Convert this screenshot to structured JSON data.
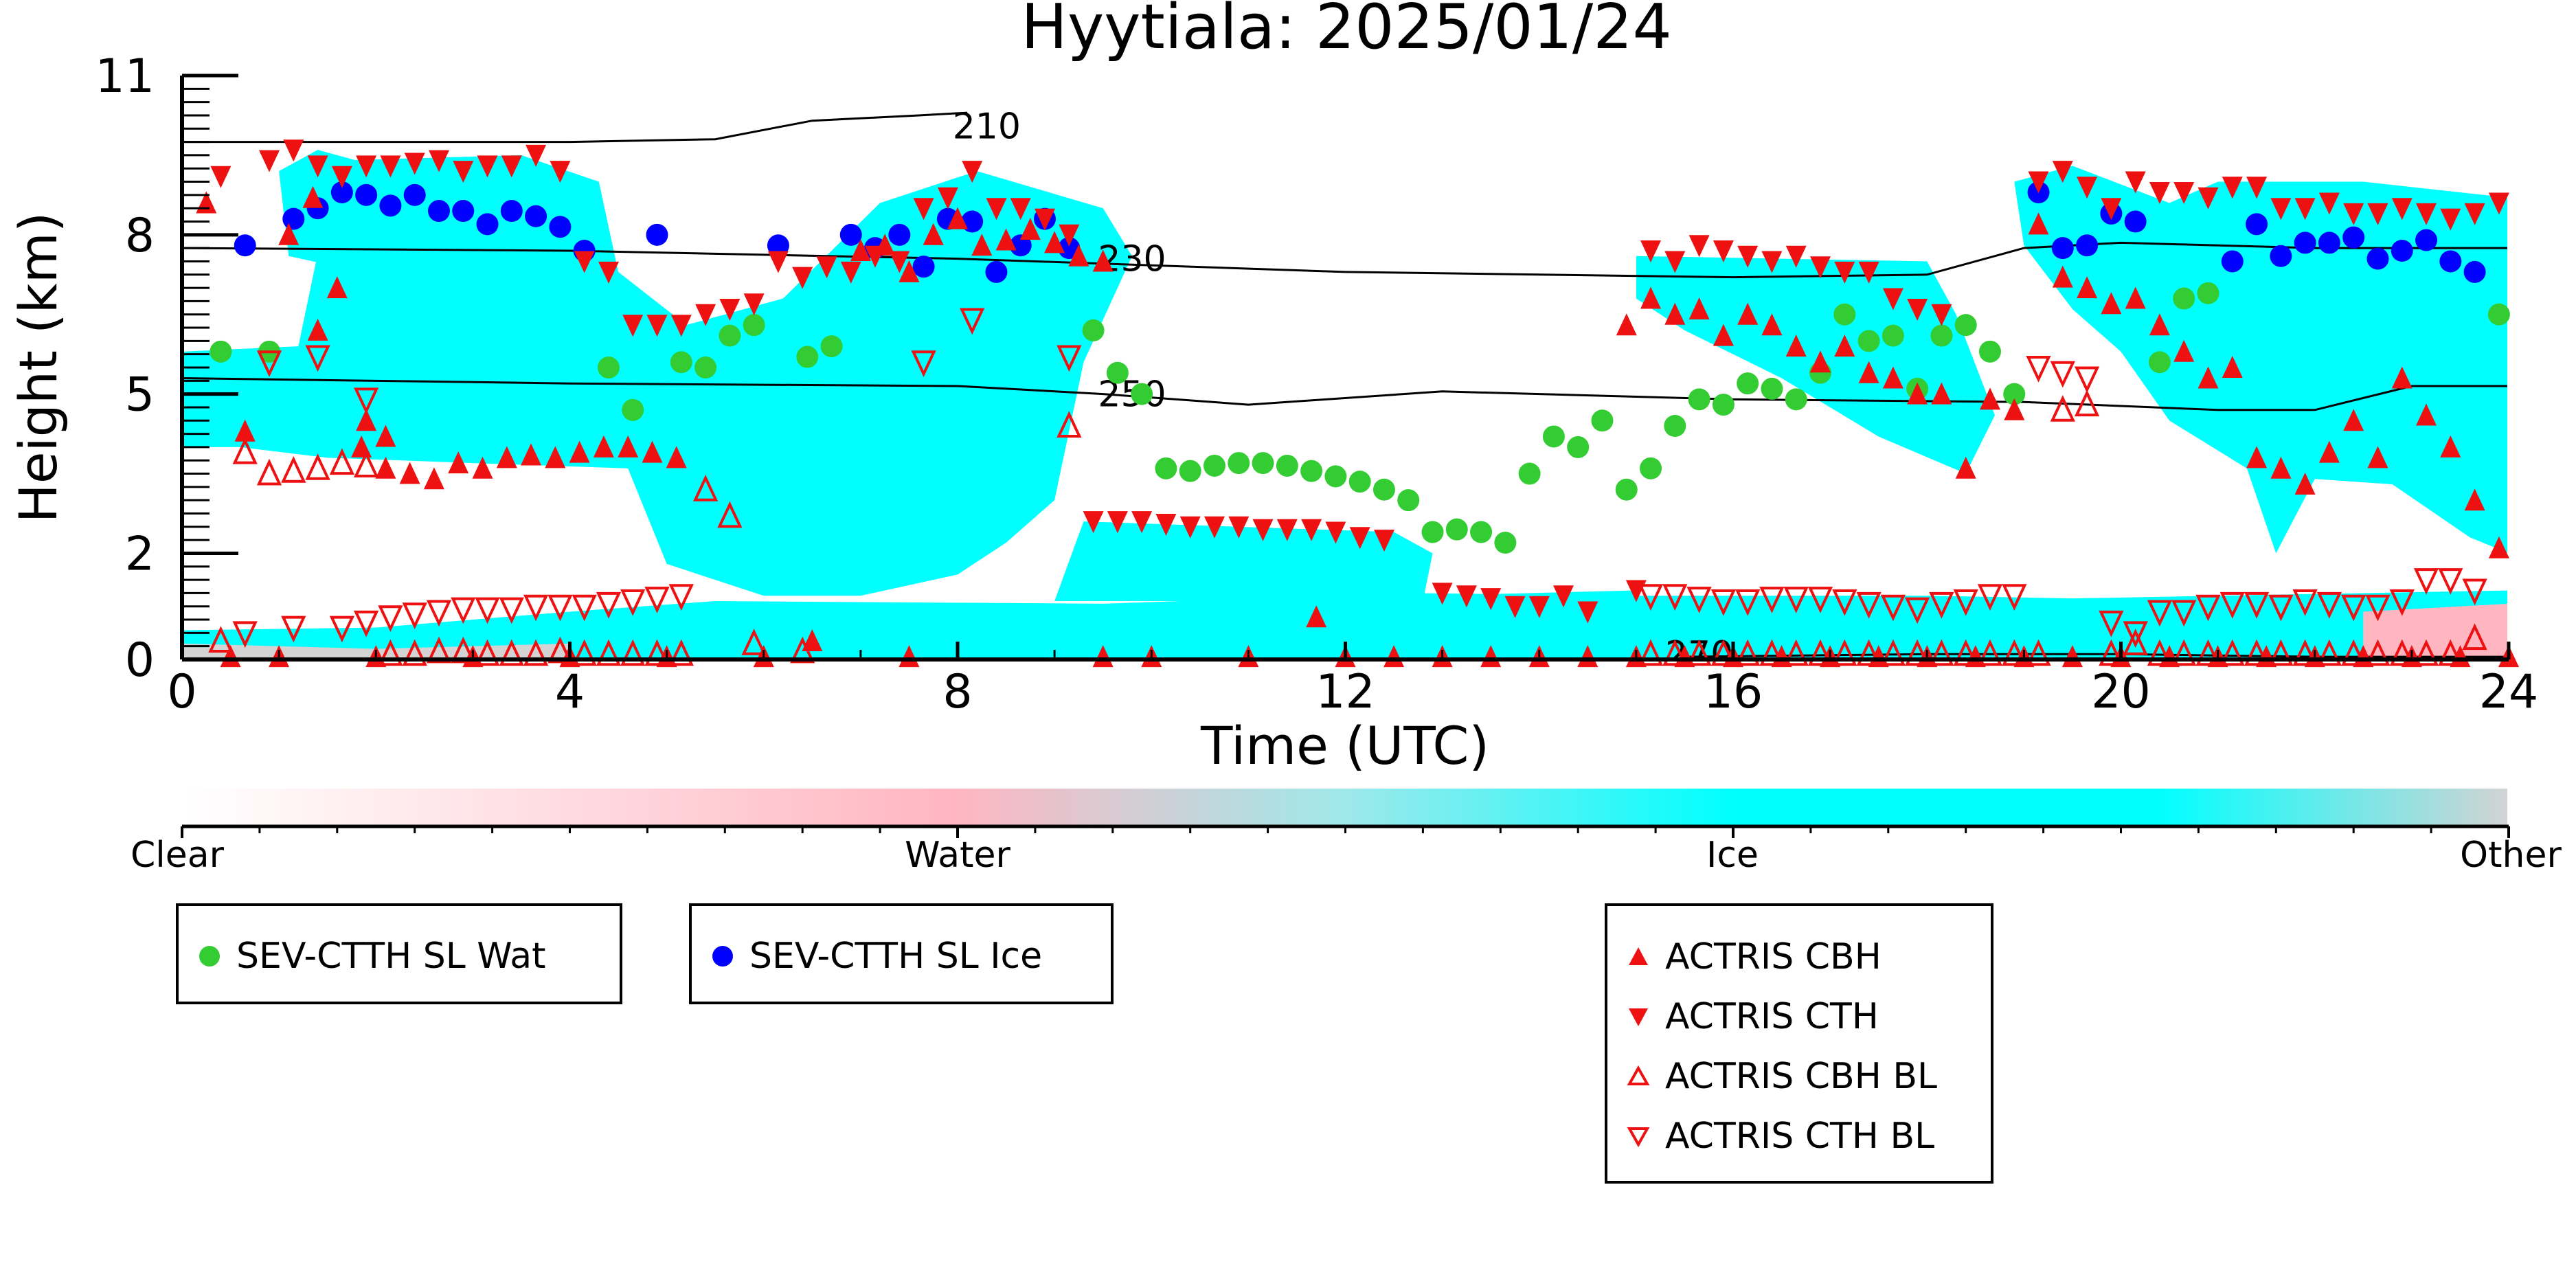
{
  "chart_data": {
    "type": "scatter",
    "title": "Hyytiala: 2025/01/24",
    "xlabel": "Time (UTC)",
    "ylabel": "Height (km)",
    "xlim": [
      0,
      24
    ],
    "ylim": [
      0,
      11
    ],
    "x_ticks": [
      0,
      4,
      8,
      12,
      16,
      20,
      24
    ],
    "y_ticks": [
      0,
      2,
      5,
      8,
      11
    ],
    "y_tick_labels": [
      "0",
      "2",
      "5",
      "8",
      "11"
    ],
    "background_field": {
      "description_colorbar": [
        "Clear",
        "Water",
        "Ice",
        "Other"
      ],
      "colors": {
        "clear": "#ffffff",
        "water": "#ffb6c1",
        "ice": "#00ffff",
        "other": "#d3d3d3"
      }
    },
    "contours": [
      {
        "label": "210",
        "x": [
          0,
          2,
          4,
          5.5,
          6.5,
          7.6,
          8.1
        ],
        "y": [
          9.75,
          9.75,
          9.75,
          9.8,
          10.15,
          10.25,
          10.3
        ]
      },
      {
        "label": "230",
        "x": [
          0,
          4,
          8,
          12,
          16,
          18,
          19,
          20,
          22,
          24
        ],
        "y": [
          7.75,
          7.7,
          7.55,
          7.3,
          7.2,
          7.25,
          7.75,
          7.85,
          7.75,
          7.75
        ]
      },
      {
        "label": "250",
        "x": [
          0,
          4,
          8,
          9.5,
          11,
          13,
          16,
          19,
          21,
          22,
          23,
          24
        ],
        "y": [
          5.3,
          5.2,
          5.15,
          5.0,
          4.8,
          5.05,
          4.9,
          4.85,
          4.7,
          4.7,
          5.15,
          5.15
        ]
      },
      {
        "label": "270",
        "x": [
          15.5,
          18,
          20,
          22,
          24
        ],
        "y": [
          0.05,
          0.1,
          0.1,
          0.05,
          0.05
        ]
      }
    ],
    "series": [
      {
        "name": "SEV-CTTH SL Wat",
        "marker": "circle",
        "color": "#33cc33",
        "x": [
          0.4,
          0.9,
          4.4,
          4.65,
          5.15,
          5.4,
          5.65,
          5.9,
          6.45,
          6.7,
          9.4,
          9.65,
          9.9,
          10.15,
          10.4,
          10.65,
          10.9,
          11.15,
          11.4,
          11.65,
          11.9,
          12.15,
          12.4,
          12.65,
          12.9,
          13.15,
          13.4,
          13.65,
          13.9,
          14.15,
          14.4,
          14.65,
          14.9,
          15.15,
          15.4,
          15.65,
          15.9,
          16.15,
          16.4,
          16.65,
          16.9,
          17.15,
          17.4,
          17.65,
          17.9,
          18.15,
          18.4,
          18.65,
          18.9,
          20.4,
          20.65,
          20.9,
          23.9
        ],
        "y": [
          5.8,
          5.8,
          5.5,
          4.7,
          5.6,
          5.5,
          6.1,
          6.3,
          5.7,
          5.9,
          6.2,
          5.4,
          5.0,
          3.6,
          3.55,
          3.65,
          3.7,
          3.7,
          3.65,
          3.55,
          3.45,
          3.35,
          3.2,
          3.0,
          2.4,
          2.45,
          2.4,
          2.2,
          3.5,
          4.2,
          4.0,
          4.5,
          3.2,
          3.6,
          4.4,
          4.9,
          4.8,
          5.2,
          5.1,
          4.9,
          5.4,
          6.5,
          6.0,
          6.1,
          5.1,
          6.1,
          6.3,
          5.8,
          5.0,
          5.6,
          6.8,
          6.9,
          6.5
        ]
      },
      {
        "name": "SEV-CTTH SL Ice",
        "marker": "circle",
        "color": "#0000ff",
        "x": [
          0.65,
          1.15,
          1.4,
          1.65,
          1.9,
          2.15,
          2.4,
          2.65,
          2.9,
          3.15,
          3.4,
          3.65,
          3.9,
          4.15,
          4.9,
          6.15,
          6.9,
          7.15,
          7.4,
          7.65,
          7.9,
          8.15,
          8.4,
          8.65,
          8.9,
          9.15,
          19.15,
          19.4,
          19.65,
          19.9,
          20.15,
          21.15,
          21.4,
          21.65,
          21.9,
          22.15,
          22.4,
          22.65,
          22.9,
          23.15,
          23.4,
          23.65
        ],
        "y": [
          7.8,
          8.3,
          8.5,
          8.8,
          8.75,
          8.55,
          8.75,
          8.45,
          8.45,
          8.2,
          8.45,
          8.35,
          8.15,
          7.7,
          8.0,
          7.8,
          8.0,
          7.75,
          8.0,
          7.4,
          8.3,
          8.25,
          7.3,
          7.8,
          8.3,
          7.75,
          8.8,
          7.75,
          7.8,
          8.4,
          8.25,
          7.5,
          8.2,
          7.6,
          7.85,
          7.85,
          7.95,
          7.55,
          7.7,
          7.9,
          7.5,
          7.3
        ]
      },
      {
        "name": "ACTRIS CBH",
        "marker": "triangle-up",
        "color": "#ee1111",
        "filled": true,
        "x": [
          0.25,
          0.65,
          1.1,
          1.35,
          1.6,
          1.85,
          2.1,
          2.35,
          2.6,
          2.85,
          3.1,
          3.35,
          3.6,
          3.85,
          4.1,
          4.35,
          4.6,
          4.85,
          5.1,
          1.4,
          1.9,
          2.1,
          7.0,
          7.25,
          7.5,
          7.75,
          8.0,
          8.25,
          8.5,
          8.75,
          9.0,
          9.25,
          9.5,
          14.9,
          15.15,
          15.4,
          15.65,
          15.9,
          16.15,
          16.4,
          16.65,
          16.9,
          17.15,
          17.4,
          17.65,
          17.9,
          18.15,
          18.4,
          18.65,
          18.9,
          19.15,
          19.4,
          19.65,
          19.9,
          20.15,
          20.4,
          20.65,
          20.9,
          21.15,
          21.4,
          21.65,
          21.9,
          22.15,
          22.4,
          22.65,
          22.9,
          23.15,
          23.4,
          23.65,
          23.9,
          0.5,
          1.0,
          2.0,
          3.0,
          4.0,
          5.0,
          6.0,
          6.5,
          7.5,
          9.5,
          10.0,
          11.0,
          11.7,
          12.0,
          12.5,
          13.0,
          13.5,
          14.0,
          14.5,
          15.0,
          15.5,
          16.0,
          16.5,
          17.0,
          17.5,
          18.0,
          18.5,
          19.0,
          19.5,
          20.0,
          20.5,
          21.0,
          21.5,
          22.0,
          22.5,
          23.0,
          23.5,
          24.0
        ],
        "y": [
          8.6,
          4.3,
          8.0,
          8.7,
          7.0,
          4.0,
          3.6,
          3.5,
          3.4,
          3.7,
          3.6,
          3.8,
          3.85,
          3.8,
          3.9,
          4.0,
          4.0,
          3.9,
          3.8,
          6.2,
          4.5,
          4.2,
          7.7,
          7.8,
          7.3,
          8.0,
          8.3,
          7.8,
          7.9,
          8.1,
          7.85,
          7.6,
          7.5,
          6.3,
          6.8,
          6.5,
          6.6,
          6.1,
          6.5,
          6.3,
          5.9,
          5.6,
          5.9,
          5.4,
          5.3,
          5.0,
          5.0,
          3.6,
          4.9,
          4.7,
          8.2,
          7.2,
          7.0,
          6.7,
          6.8,
          6.3,
          5.8,
          5.3,
          5.5,
          3.8,
          3.6,
          3.3,
          3.9,
          4.5,
          3.8,
          5.3,
          4.6,
          4.0,
          3.0,
          2.1,
          0.05,
          0.05,
          0.05,
          0.05,
          0.05,
          0.05,
          0.05,
          0.35,
          0.05,
          0.05,
          0.05,
          0.05,
          0.8,
          0.05,
          0.05,
          0.05,
          0.05,
          0.05,
          0.05,
          0.05,
          0.05,
          0.05,
          0.05,
          0.05,
          0.05,
          0.05,
          0.05,
          0.05,
          0.05,
          0.05,
          0.05,
          0.05,
          0.05,
          0.05,
          0.05,
          0.05,
          0.05,
          0.05
        ]
      },
      {
        "name": "ACTRIS CTH",
        "marker": "triangle-down",
        "color": "#ee1111",
        "filled": true,
        "x": [
          0.4,
          0.9,
          1.15,
          1.4,
          1.65,
          1.9,
          2.15,
          2.4,
          2.65,
          2.9,
          3.15,
          3.4,
          3.65,
          3.9,
          4.15,
          4.4,
          4.65,
          4.9,
          5.15,
          5.4,
          5.65,
          5.9,
          6.15,
          6.4,
          6.65,
          6.9,
          7.15,
          7.4,
          7.65,
          7.9,
          8.15,
          8.4,
          8.65,
          8.9,
          9.15,
          9.4,
          9.65,
          9.9,
          10.15,
          10.4,
          10.65,
          10.9,
          11.15,
          11.4,
          11.65,
          11.9,
          12.15,
          12.4,
          15.15,
          15.4,
          15.65,
          15.9,
          16.15,
          16.4,
          16.65,
          16.9,
          17.15,
          17.4,
          17.65,
          17.9,
          18.15,
          19.15,
          19.4,
          19.65,
          19.9,
          20.15,
          20.4,
          20.65,
          20.9,
          21.15,
          21.4,
          21.65,
          21.9,
          22.15,
          22.4,
          22.65,
          22.9,
          23.15,
          23.4,
          23.65,
          23.9,
          13.0,
          13.25,
          13.5,
          13.75,
          14.0,
          14.25,
          14.5,
          15.0
        ],
        "y": [
          9.1,
          9.4,
          9.6,
          9.3,
          9.1,
          9.3,
          9.3,
          9.35,
          9.4,
          9.2,
          9.3,
          9.3,
          9.5,
          9.2,
          7.5,
          7.3,
          6.3,
          6.3,
          6.3,
          6.5,
          6.6,
          6.7,
          7.5,
          7.2,
          7.4,
          7.3,
          7.6,
          7.5,
          8.5,
          8.7,
          9.2,
          8.5,
          8.5,
          8.3,
          8.0,
          2.6,
          2.6,
          2.6,
          2.55,
          2.5,
          2.5,
          2.5,
          2.45,
          2.45,
          2.45,
          2.4,
          2.3,
          2.25,
          7.7,
          7.5,
          7.8,
          7.7,
          7.6,
          7.5,
          7.6,
          7.4,
          7.3,
          7.3,
          6.8,
          6.6,
          6.5,
          9.0,
          9.2,
          8.9,
          8.5,
          9.0,
          8.8,
          8.8,
          8.7,
          8.9,
          8.9,
          8.5,
          8.5,
          8.6,
          8.4,
          8.4,
          8.5,
          8.4,
          8.3,
          8.4,
          8.6,
          1.25,
          1.2,
          1.15,
          1.0,
          1.0,
          1.2,
          0.9,
          1.3
        ]
      },
      {
        "name": "ACTRIS CBH BL",
        "marker": "triangle-up",
        "color": "#ee1111",
        "filled": false,
        "x": [
          0.65,
          0.9,
          1.15,
          1.4,
          1.65,
          1.9,
          2.15,
          2.4,
          2.65,
          2.9,
          3.15,
          3.4,
          3.65,
          3.9,
          4.15,
          4.4,
          4.65,
          4.9,
          5.15,
          5.4,
          5.65,
          9.15,
          15.15,
          15.4,
          15.65,
          15.9,
          16.15,
          16.4,
          16.65,
          16.9,
          17.15,
          17.4,
          17.65,
          17.9,
          18.15,
          18.4,
          18.65,
          18.9,
          19.15,
          19.4,
          19.65,
          19.9,
          20.15,
          20.4,
          20.65,
          20.9,
          21.15,
          21.4,
          21.65,
          21.9,
          22.15,
          22.4,
          22.65,
          22.9,
          23.15,
          23.4,
          23.65,
          0.4,
          5.9,
          6.4
        ],
        "y": [
          3.9,
          3.5,
          3.55,
          3.6,
          3.7,
          3.65,
          0.1,
          0.1,
          0.15,
          0.15,
          0.1,
          0.1,
          0.1,
          0.15,
          0.1,
          0.1,
          0.1,
          0.1,
          0.1,
          3.2,
          2.7,
          4.4,
          0.1,
          0.1,
          0.1,
          0.1,
          0.1,
          0.1,
          0.1,
          0.1,
          0.1,
          0.1,
          0.1,
          0.1,
          0.1,
          0.1,
          0.1,
          0.1,
          0.1,
          4.7,
          4.8,
          0.1,
          0.3,
          0.1,
          0.1,
          0.1,
          0.1,
          0.1,
          0.1,
          0.1,
          0.1,
          0.1,
          0.1,
          0.1,
          0.1,
          0.1,
          0.4,
          0.35,
          0.3,
          0.15
        ]
      },
      {
        "name": "ACTRIS CTH BL",
        "marker": "triangle-down",
        "color": "#ee1111",
        "filled": false,
        "x": [
          0.65,
          1.15,
          1.65,
          1.9,
          2.15,
          2.4,
          2.65,
          2.9,
          3.15,
          3.4,
          3.65,
          3.9,
          4.15,
          4.4,
          4.65,
          4.9,
          5.15,
          0.9,
          1.4,
          1.9,
          8.15,
          7.65,
          9.15,
          15.15,
          15.4,
          15.65,
          15.9,
          16.15,
          16.4,
          16.65,
          16.9,
          17.15,
          17.4,
          17.65,
          17.9,
          18.15,
          18.4,
          18.65,
          18.9,
          19.15,
          19.4,
          19.65,
          19.9,
          20.15,
          20.4,
          20.65,
          20.9,
          21.15,
          21.4,
          21.65,
          21.9,
          22.15,
          22.4,
          22.65,
          22.9,
          23.15,
          23.4,
          23.65
        ],
        "y": [
          0.5,
          0.6,
          0.6,
          0.7,
          0.8,
          0.85,
          0.9,
          0.95,
          0.95,
          0.95,
          1.0,
          1.0,
          1.0,
          1.05,
          1.1,
          1.15,
          1.2,
          5.6,
          5.7,
          4.9,
          6.4,
          5.6,
          5.7,
          1.2,
          1.2,
          1.15,
          1.1,
          1.1,
          1.15,
          1.15,
          1.15,
          1.1,
          1.05,
          1.0,
          0.95,
          1.05,
          1.1,
          1.2,
          1.2,
          5.5,
          5.4,
          5.3,
          0.7,
          0.5,
          0.9,
          0.9,
          1.0,
          1.05,
          1.05,
          1.0,
          1.1,
          1.05,
          1.0,
          1.0,
          1.1,
          1.5,
          1.5,
          1.3
        ]
      }
    ],
    "colorbar": {
      "labels": [
        "Clear",
        "Water",
        "Ice",
        "Other"
      ],
      "stops": [
        "#ffffff",
        "#ffb6c1",
        "#00ffff",
        "#d3d3d3"
      ]
    },
    "legends": [
      {
        "entries": [
          "SEV-CTTH SL Wat"
        ]
      },
      {
        "entries": [
          "SEV-CTTH SL Ice"
        ]
      },
      {
        "entries": [
          "ACTRIS CBH",
          "ACTRIS CTH",
          "ACTRIS CBH BL",
          "ACTRIS CTH BL"
        ]
      }
    ]
  },
  "colors": {
    "water_dot": "#33cc33",
    "ice_dot": "#0000ff",
    "actris": "#ee1111",
    "cloud_ice": "#00ffff",
    "cloud_water": "#ffb6c1",
    "cloud_other": "#d3d3d3"
  }
}
